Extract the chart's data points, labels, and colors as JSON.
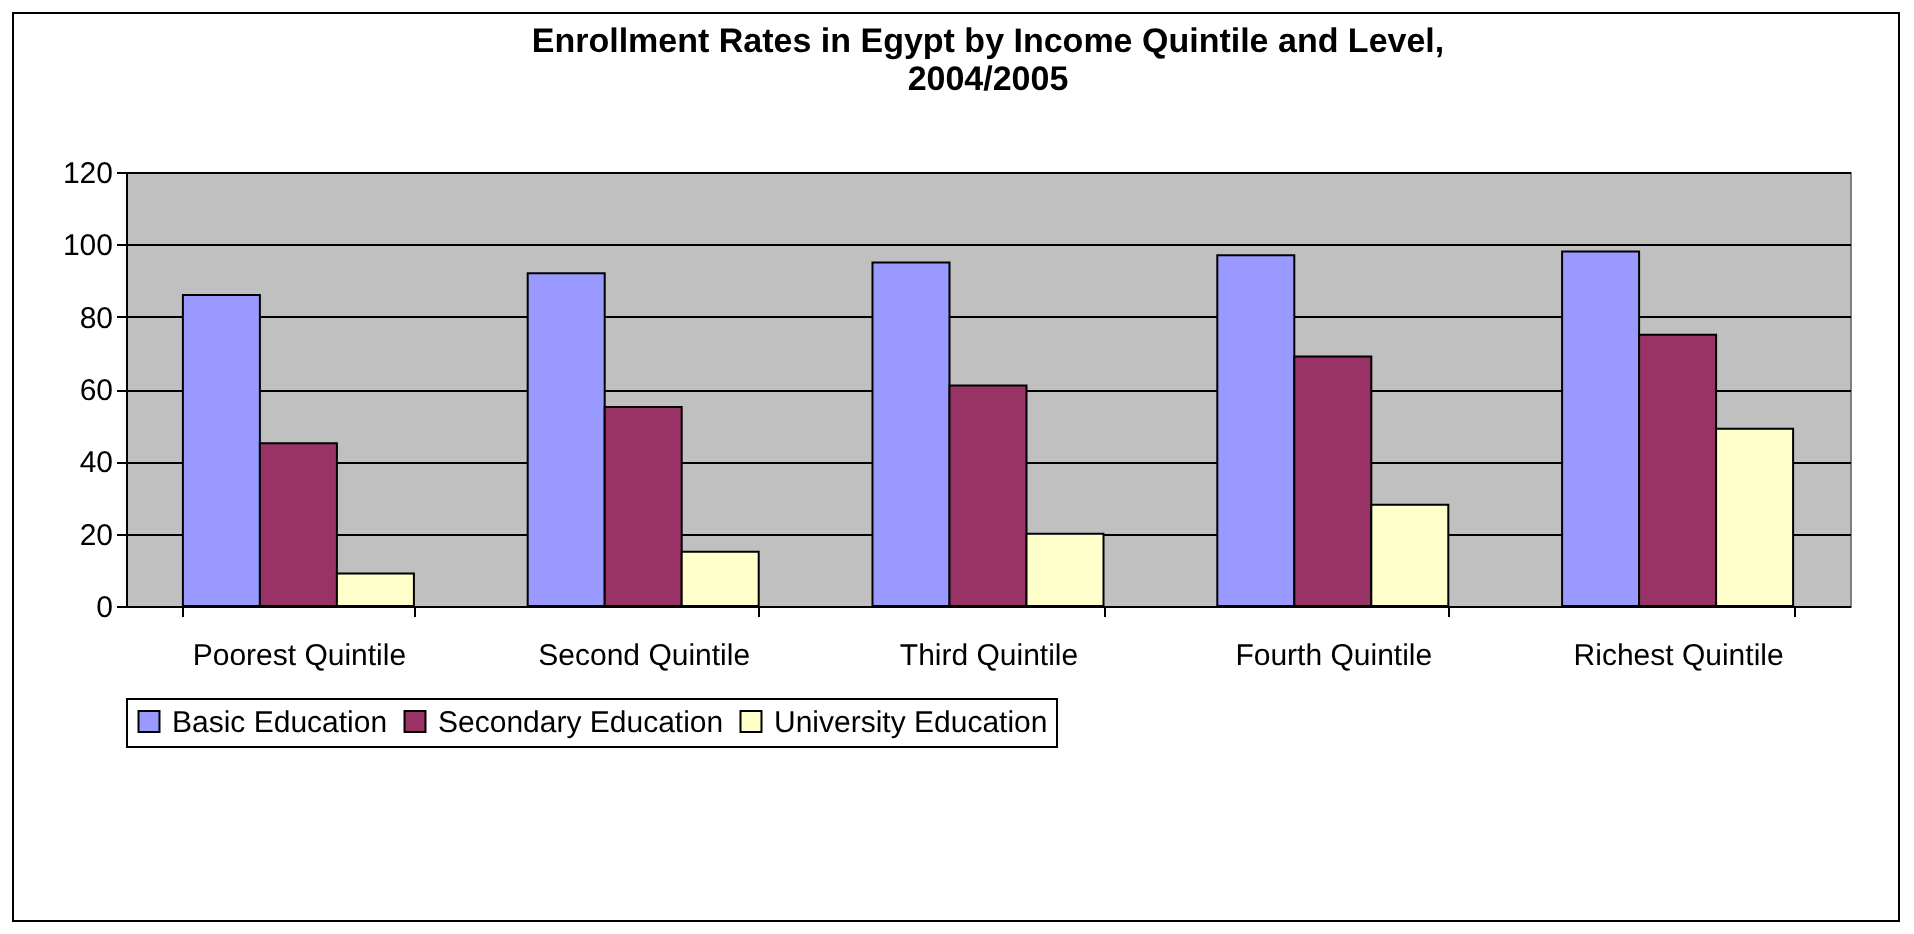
{
  "chart_data": {
    "type": "bar",
    "title": [
      "Enrollment Rates in Egypt by Income Quintile and Level,",
      "2004/2005"
    ],
    "categories": [
      "Poorest Quintile",
      "Second Quintile",
      "Third Quintile",
      "Fourth Quintile",
      "Richest Quintile"
    ],
    "series": [
      {
        "name": "Basic Education",
        "color": "#9999ff",
        "values": [
          86,
          92,
          95,
          97,
          98
        ]
      },
      {
        "name": "Secondary Education",
        "color": "#993366",
        "values": [
          45,
          55,
          61,
          69,
          75
        ]
      },
      {
        "name": "University Education",
        "color": "#ffffcc",
        "values": [
          9,
          15,
          20,
          28,
          49
        ]
      }
    ],
    "ylim": [
      0,
      120
    ],
    "yticks": [
      0,
      20,
      40,
      60,
      80,
      100,
      120
    ],
    "grid": "y",
    "legend": "bottom"
  }
}
